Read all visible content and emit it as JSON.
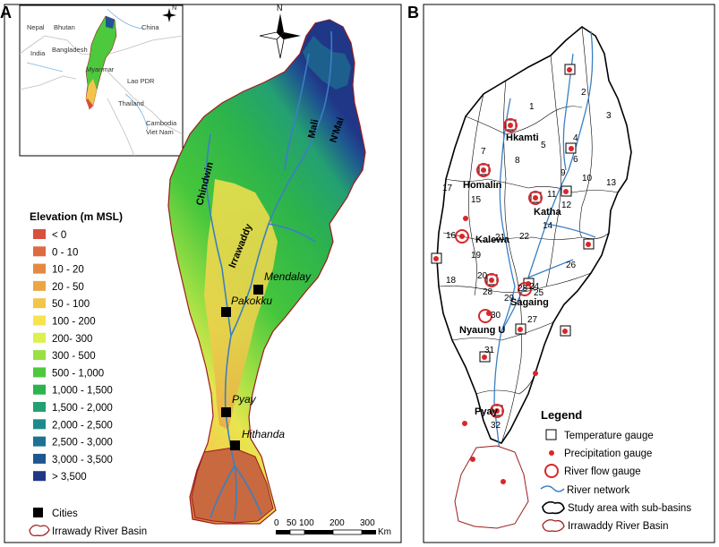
{
  "panels": {
    "a": "A",
    "b": "B"
  },
  "inset": {
    "countries": [
      "Nepal",
      "Bhutan",
      "China",
      "India",
      "Bangladesh",
      "Myanmar",
      "Lao PDR",
      "Thailand",
      "Cambodia",
      "Viet Nam"
    ],
    "north": "N"
  },
  "panel_a": {
    "north": "N",
    "rivers": [
      "Chindwin",
      "Irrawaddy",
      "Mali",
      "N'Mai"
    ],
    "cities": [
      "Mendalay",
      "Pakokku",
      "Pyay",
      "Hithanda"
    ],
    "legend": {
      "title": "Elevation (m MSL)",
      "classes": [
        {
          "label": "< 0",
          "color": "#d94f3d"
        },
        {
          "label": "0 - 10",
          "color": "#dd6b40"
        },
        {
          "label": "10 - 20",
          "color": "#e48842"
        },
        {
          "label": "20 - 50",
          "color": "#eba645"
        },
        {
          "label": "50 - 100",
          "color": "#f2c54a"
        },
        {
          "label": "100 - 200",
          "color": "#f8e34f"
        },
        {
          "label": "200- 300",
          "color": "#dcf04e"
        },
        {
          "label": "300 - 500",
          "color": "#98e043"
        },
        {
          "label": "500 - 1,000",
          "color": "#4cc93c"
        },
        {
          "label": "1,000 - 1,500",
          "color": "#2cb34c"
        },
        {
          "label": "1,500 - 2,000",
          "color": "#24a072"
        },
        {
          "label": "2,000 - 2,500",
          "color": "#1f8a8b"
        },
        {
          "label": "2,500 - 3,000",
          "color": "#1d7293"
        },
        {
          "label": "3,000 - 3,500",
          "color": "#1e5690"
        },
        {
          "label": "> 3,500",
          "color": "#203687"
        }
      ],
      "cities_label": "Cities",
      "basin_label": "Irrawady River Basin"
    },
    "scale": {
      "ticks": [
        "0",
        "50",
        "100",
        "200",
        "300"
      ],
      "unit": "Km"
    }
  },
  "panel_b": {
    "places": [
      "Hkamti",
      "Homalin",
      "Katha",
      "Kalewa",
      "Sagaing",
      "Nyaung U",
      "Pyay"
    ],
    "subbasins": [
      "1",
      "2",
      "3",
      "4",
      "5",
      "6",
      "7",
      "8",
      "9",
      "10",
      "11",
      "12",
      "13",
      "14",
      "15",
      "16",
      "17",
      "18",
      "19",
      "20",
      "21",
      "22",
      "23",
      "24",
      "25",
      "26",
      "27",
      "28",
      "29",
      "30",
      "31",
      "32"
    ],
    "legend": {
      "title": "Legend",
      "items": [
        "Temperature gauge",
        "Precipitation gauge",
        "River flow gauge",
        "River network",
        "Study area with sub-basins",
        "Irrawaddy River Basin"
      ]
    }
  },
  "colors": {
    "river": "#3a7fc4",
    "basin_outline": "#9b1c1c",
    "gauge_red": "#d9262b"
  }
}
